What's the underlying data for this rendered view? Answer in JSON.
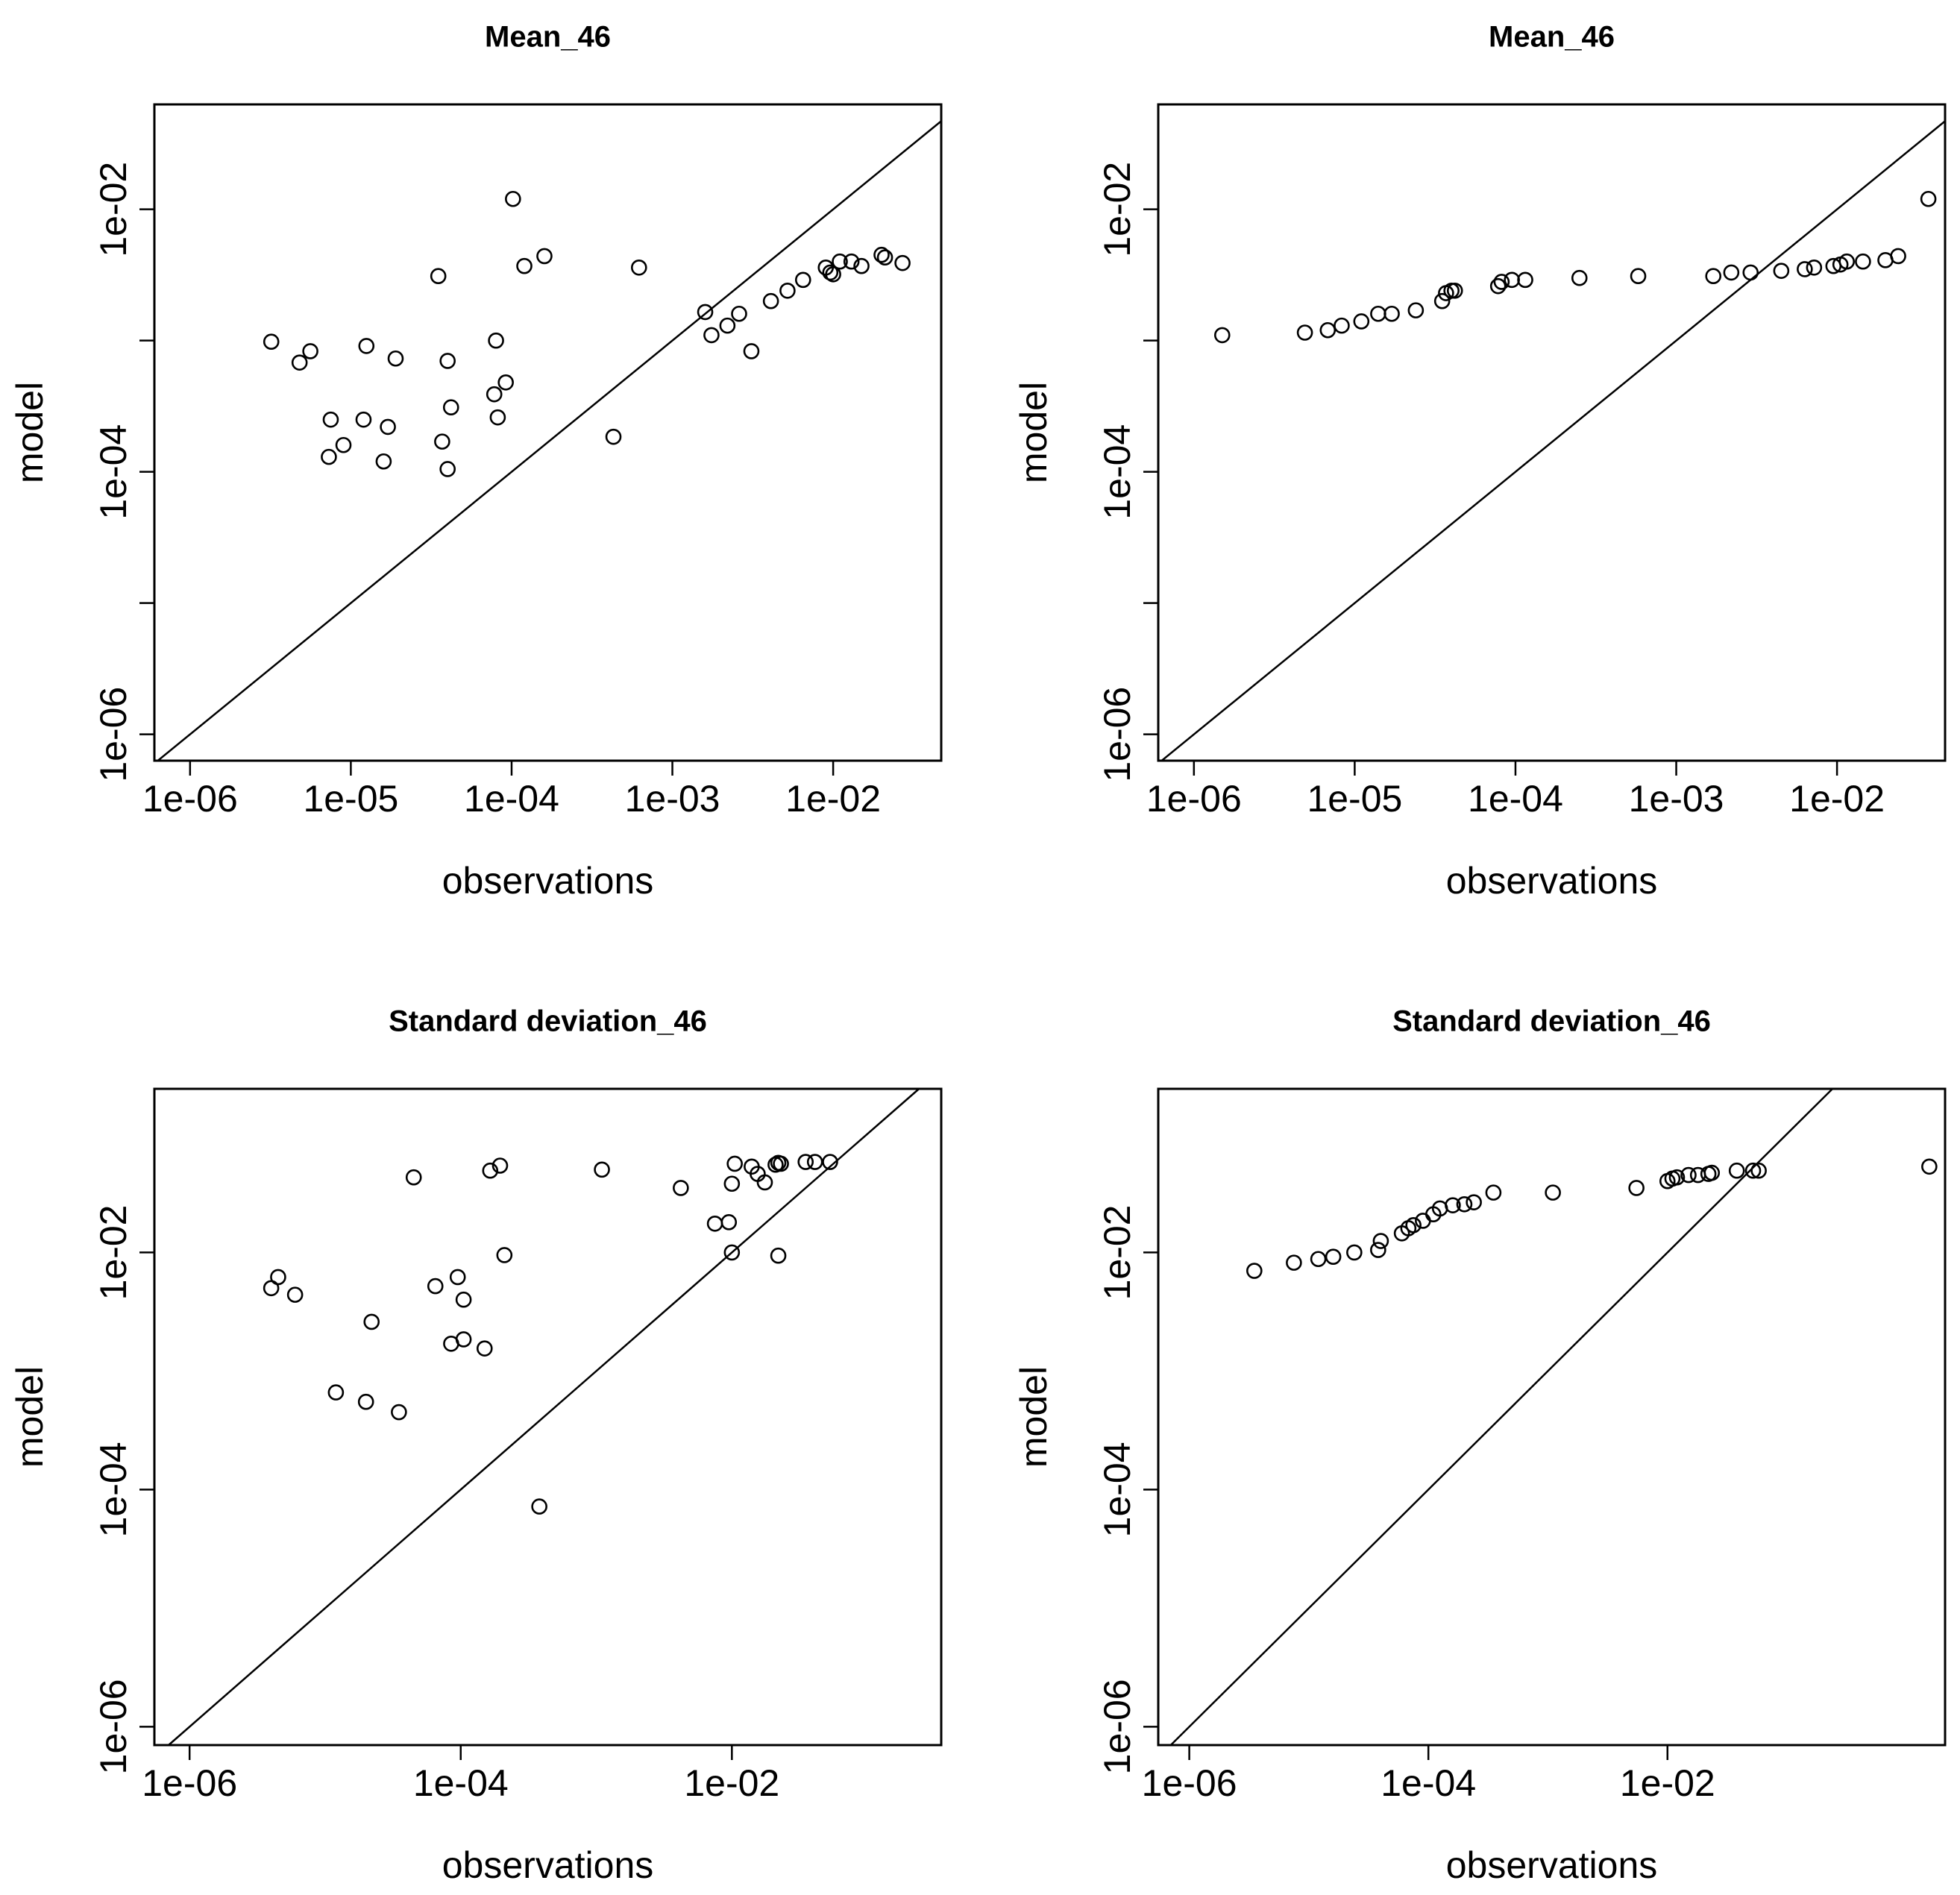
{
  "chart_data": [
    {
      "type": "scatter",
      "title": "Mean_46",
      "xlabel": "observations",
      "ylabel": "model",
      "log_x": true,
      "log_y": true,
      "xlim": [
        6e-07,
        0.047
      ],
      "ylim": [
        6.3e-07,
        0.063
      ],
      "x_ticks": [
        1e-06,
        1e-05,
        0.0001,
        0.001,
        0.01
      ],
      "x_tick_labels": [
        "1e-06",
        "1e-05",
        "1e-04",
        "1e-03",
        "1e-02"
      ],
      "y_ticks": [
        1e-06,
        1e-05,
        0.0001,
        0.001,
        0.01
      ],
      "y_tick_labels": [
        "1e-06",
        "",
        "1e-04",
        "",
        "1e-02"
      ],
      "reference_line": "y = x",
      "points": [
        [
          3.2e-06,
          0.00098
        ],
        [
          4.8e-06,
          0.00068
        ],
        [
          5.6e-06,
          0.00083
        ],
        [
          7.5e-06,
          0.00025
        ],
        [
          7.3e-06,
          0.00013
        ],
        [
          9e-06,
          0.00016
        ],
        [
          1.2e-05,
          0.00025
        ],
        [
          1.25e-05,
          0.00091
        ],
        [
          1.6e-05,
          0.00012
        ],
        [
          1.7e-05,
          0.00022
        ],
        [
          1.9e-05,
          0.00073
        ],
        [
          3.5e-05,
          0.0031
        ],
        [
          3.7e-05,
          0.00017
        ],
        [
          4e-05,
          0.000105
        ],
        [
          4e-05,
          0.0007
        ],
        [
          4.2e-05,
          0.00031
        ],
        [
          8e-05,
          0.001
        ],
        [
          7.8e-05,
          0.00039
        ],
        [
          8.2e-05,
          0.00026
        ],
        [
          9.2e-05,
          0.00048
        ],
        [
          0.000102,
          0.012
        ],
        [
          0.00012,
          0.0037
        ],
        [
          0.00016,
          0.0044
        ],
        [
          0.00043,
          0.000185
        ],
        [
          0.00062,
          0.0036
        ],
        [
          0.0016,
          0.00165
        ],
        [
          0.00175,
          0.0011
        ],
        [
          0.0022,
          0.0013
        ],
        [
          0.0026,
          0.0016
        ],
        [
          0.0031,
          0.00083
        ],
        [
          0.0041,
          0.002
        ],
        [
          0.0052,
          0.0024
        ],
        [
          0.0065,
          0.0029
        ],
        [
          0.009,
          0.0036
        ],
        [
          0.0096,
          0.0033
        ],
        [
          0.01,
          0.0032
        ],
        [
          0.011,
          0.004
        ],
        [
          0.013,
          0.004
        ],
        [
          0.015,
          0.0037
        ],
        [
          0.02,
          0.0045
        ],
        [
          0.021,
          0.0043
        ],
        [
          0.027,
          0.0039
        ]
      ]
    },
    {
      "type": "scatter",
      "title": "Mean_46",
      "xlabel": "observations",
      "ylabel": "model",
      "log_x": true,
      "log_y": true,
      "xlim": [
        6e-07,
        0.047
      ],
      "ylim": [
        6.3e-07,
        0.063
      ],
      "x_ticks": [
        1e-06,
        1e-05,
        0.0001,
        0.001,
        0.01
      ],
      "x_tick_labels": [
        "1e-06",
        "1e-05",
        "1e-04",
        "1e-03",
        "1e-02"
      ],
      "y_ticks": [
        1e-06,
        1e-05,
        0.0001,
        0.001,
        0.01
      ],
      "y_tick_labels": [
        "1e-06",
        "",
        "1e-04",
        "",
        "1e-02"
      ],
      "reference_line": "y = x",
      "points": [
        [
          1.5e-06,
          0.0011
        ],
        [
          4.9e-06,
          0.00115
        ],
        [
          6.8e-06,
          0.0012
        ],
        [
          8.3e-06,
          0.0013
        ],
        [
          1.1e-05,
          0.0014
        ],
        [
          1.4e-05,
          0.0016
        ],
        [
          1.7e-05,
          0.0016
        ],
        [
          2.4e-05,
          0.0017
        ],
        [
          3.5e-05,
          0.002
        ],
        [
          3.7e-05,
          0.0023
        ],
        [
          4e-05,
          0.0024
        ],
        [
          4.2e-05,
          0.0024
        ],
        [
          7.8e-05,
          0.0026
        ],
        [
          8.2e-05,
          0.0028
        ],
        [
          9.5e-05,
          0.0029
        ],
        [
          0.000115,
          0.0029
        ],
        [
          0.00025,
          0.003
        ],
        [
          0.00058,
          0.0031
        ],
        [
          0.0017,
          0.0031
        ],
        [
          0.0022,
          0.0033
        ],
        [
          0.0029,
          0.0033
        ],
        [
          0.0045,
          0.0034
        ],
        [
          0.0063,
          0.0035
        ],
        [
          0.0072,
          0.0036
        ],
        [
          0.0095,
          0.0037
        ],
        [
          0.0105,
          0.0038
        ],
        [
          0.0115,
          0.004
        ],
        [
          0.0145,
          0.004
        ],
        [
          0.02,
          0.0041
        ],
        [
          0.024,
          0.0044
        ],
        [
          0.037,
          0.012
        ]
      ]
    },
    {
      "type": "scatter",
      "title": "Standard deviation_46",
      "xlabel": "observations",
      "ylabel": "model",
      "log_x": true,
      "log_y": true,
      "xlim": [
        5.5e-07,
        0.35
      ],
      "ylim": [
        7e-07,
        0.24
      ],
      "x_ticks": [
        1e-06,
        0.0001,
        0.01
      ],
      "x_tick_labels": [
        "1e-06",
        "1e-04",
        "1e-02"
      ],
      "y_ticks": [
        1e-06,
        0.0001,
        0.01
      ],
      "y_tick_labels": [
        "1e-06",
        "1e-04",
        "1e-02"
      ],
      "reference_line": "y = x",
      "points": [
        [
          4.5e-06,
          0.0062
        ],
        [
          4e-06,
          0.005
        ],
        [
          6e-06,
          0.0044
        ],
        [
          1.2e-05,
          0.00066
        ],
        [
          2.2e-05,
          0.0026
        ],
        [
          2e-05,
          0.00055
        ],
        [
          3.5e-05,
          0.00045
        ],
        [
          4.5e-05,
          0.043
        ],
        [
          6.5e-05,
          0.0052
        ],
        [
          8.5e-05,
          0.0017
        ],
        [
          9.5e-05,
          0.0062
        ],
        [
          0.000105,
          0.004
        ],
        [
          0.000105,
          0.00185
        ],
        [
          0.00015,
          0.00155
        ],
        [
          0.000165,
          0.049
        ],
        [
          0.000195,
          0.054
        ],
        [
          0.00021,
          0.0095
        ],
        [
          0.00038,
          7.2e-05
        ],
        [
          0.0011,
          0.05
        ],
        [
          0.0042,
          0.035
        ],
        [
          0.0075,
          0.0175
        ],
        [
          0.0095,
          0.018
        ],
        [
          0.01,
          0.01
        ],
        [
          0.01,
          0.038
        ],
        [
          0.0105,
          0.056
        ],
        [
          0.014,
          0.053
        ],
        [
          0.0155,
          0.046
        ],
        [
          0.0175,
          0.039
        ],
        [
          0.021,
          0.055
        ],
        [
          0.022,
          0.057
        ],
        [
          0.022,
          0.0094
        ],
        [
          0.023,
          0.056
        ],
        [
          0.035,
          0.058
        ],
        [
          0.041,
          0.058
        ],
        [
          0.053,
          0.058
        ]
      ]
    },
    {
      "type": "scatter",
      "title": "Standard deviation_46",
      "xlabel": "observations",
      "ylabel": "model",
      "log_x": true,
      "log_y": true,
      "xlim": [
        5.5e-07,
        2.1
      ],
      "ylim": [
        7e-07,
        0.24
      ],
      "x_ticks": [
        1e-06,
        0.0001,
        0.01
      ],
      "x_tick_labels": [
        "1e-06",
        "1e-04",
        "1e-02"
      ],
      "y_ticks": [
        1e-06,
        0.0001,
        0.01
      ],
      "y_tick_labels": [
        "1e-06",
        "1e-04",
        "1e-02"
      ],
      "reference_line": "y = x",
      "points": [
        [
          3.5e-06,
          0.007
        ],
        [
          7.5e-06,
          0.0082
        ],
        [
          1.2e-05,
          0.0088
        ],
        [
          1.6e-05,
          0.0092
        ],
        [
          2.4e-05,
          0.01
        ],
        [
          3.8e-05,
          0.0105
        ],
        [
          4e-05,
          0.0125
        ],
        [
          6e-05,
          0.0145
        ],
        [
          6.8e-05,
          0.016
        ],
        [
          7.5e-05,
          0.017
        ],
        [
          9e-05,
          0.0185
        ],
        [
          0.00011,
          0.021
        ],
        [
          0.000125,
          0.0235
        ],
        [
          0.00016,
          0.025
        ],
        [
          0.0002,
          0.0255
        ],
        [
          0.00024,
          0.0265
        ],
        [
          0.00035,
          0.032
        ],
        [
          0.0011,
          0.032
        ],
        [
          0.0055,
          0.035
        ],
        [
          0.01,
          0.04
        ],
        [
          0.011,
          0.042
        ],
        [
          0.012,
          0.043
        ],
        [
          0.015,
          0.045
        ],
        [
          0.018,
          0.045
        ],
        [
          0.022,
          0.046
        ],
        [
          0.0235,
          0.047
        ],
        [
          0.038,
          0.049
        ],
        [
          0.052,
          0.049
        ],
        [
          0.058,
          0.049
        ],
        [
          1.55,
          0.053
        ]
      ]
    }
  ]
}
